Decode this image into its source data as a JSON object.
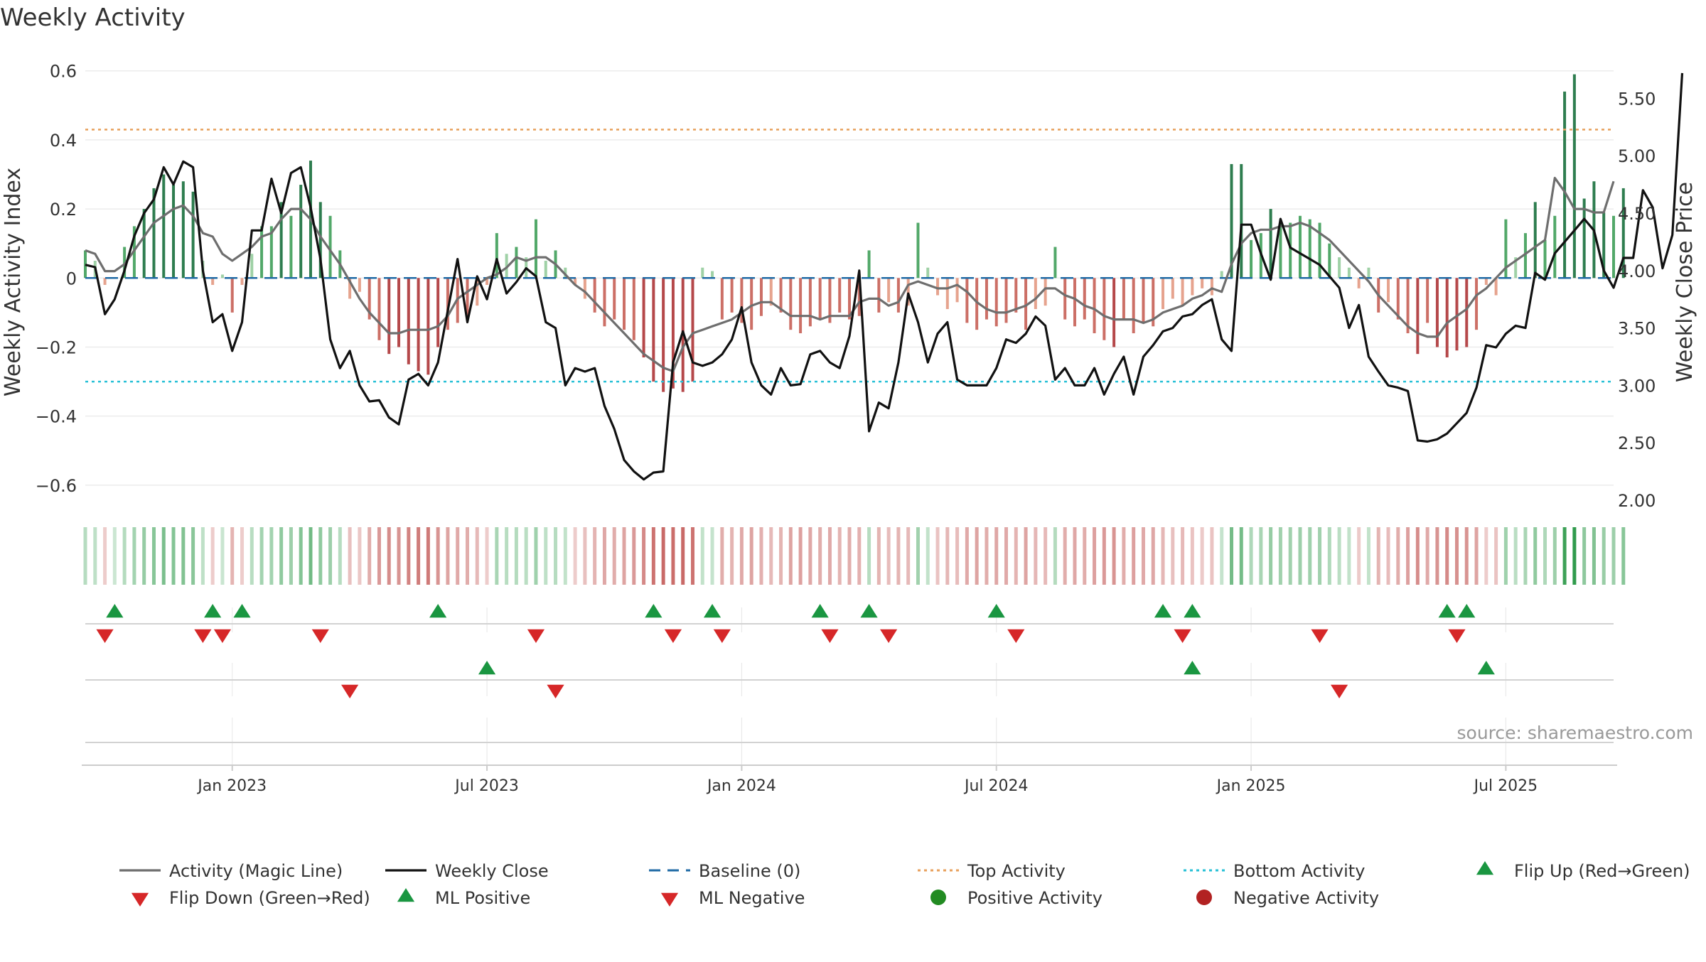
{
  "chart_data": {
    "type": "bar",
    "title": "Weekly Activity",
    "ylabel": "Weekly Activity Index",
    "y2label": "Weekly Close Price",
    "ylim": [
      -0.66,
      0.62
    ],
    "y2lim": [
      1.95,
      5.8
    ],
    "yticks": [
      0.6,
      0.4,
      0.2,
      0,
      -0.2,
      -0.4,
      -0.6
    ],
    "ytick_labels": [
      "0.6",
      "0.4",
      "0.2",
      "0",
      "−0.2",
      "−0.4",
      "−0.6"
    ],
    "y2ticks": [
      5.5,
      5.0,
      4.5,
      4.0,
      3.5,
      3.0,
      2.5,
      2.0
    ],
    "y2tick_labels": [
      "5.50",
      "5.00",
      "4.50",
      "4.00",
      "3.50",
      "3.00",
      "2.50",
      "2.00"
    ],
    "xticks": [
      15,
      41,
      67,
      93,
      119,
      145
    ],
    "xtick_labels": [
      "Jan 2023",
      "Jul 2023",
      "Jan 2024",
      "Jul 2024",
      "Jan 2025",
      "Jul 2025"
    ],
    "week_count": 157,
    "top_activity": 0.43,
    "bottom_activity": -0.3,
    "baseline": 0,
    "activity": [
      0.08,
      0.05,
      -0.02,
      0.0,
      0.09,
      0.15,
      0.2,
      0.26,
      0.3,
      0.27,
      0.28,
      0.25,
      0.05,
      -0.02,
      0.01,
      -0.1,
      -0.02,
      0.07,
      0.15,
      0.15,
      0.22,
      0.18,
      0.27,
      0.34,
      0.22,
      0.18,
      0.08,
      -0.06,
      -0.04,
      -0.12,
      -0.18,
      -0.22,
      -0.2,
      -0.25,
      -0.27,
      -0.28,
      -0.2,
      -0.15,
      -0.13,
      -0.12,
      -0.08,
      -0.02,
      0.13,
      0.07,
      0.09,
      0.06,
      0.17,
      0.05,
      0.08,
      0.03,
      -0.02,
      -0.06,
      -0.1,
      -0.14,
      -0.12,
      -0.15,
      -0.18,
      -0.23,
      -0.3,
      -0.33,
      -0.32,
      -0.33,
      -0.3,
      0.03,
      0.02,
      -0.12,
      -0.1,
      -0.13,
      -0.15,
      -0.11,
      -0.08,
      -0.1,
      -0.15,
      -0.16,
      -0.14,
      -0.12,
      -0.13,
      -0.1,
      -0.12,
      -0.11,
      0.08,
      -0.1,
      -0.07,
      -0.1,
      -0.08,
      0.16,
      0.03,
      -0.05,
      -0.09,
      -0.07,
      -0.13,
      -0.15,
      -0.12,
      -0.14,
      -0.13,
      -0.1,
      -0.15,
      -0.09,
      -0.08,
      0.09,
      -0.12,
      -0.14,
      -0.12,
      -0.16,
      -0.18,
      -0.2,
      -0.12,
      -0.16,
      -0.13,
      -0.14,
      -0.09,
      -0.06,
      -0.08,
      -0.05,
      -0.03,
      -0.05,
      0.02,
      0.33,
      0.33,
      0.11,
      0.13,
      0.2,
      0.16,
      0.16,
      0.18,
      0.17,
      0.16,
      0.1,
      0.06,
      0.03,
      -0.03,
      0.03,
      -0.1,
      -0.07,
      -0.12,
      -0.16,
      -0.22,
      -0.13,
      -0.2,
      -0.23,
      -0.21,
      -0.2,
      -0.15,
      -0.02,
      -0.05,
      0.17,
      0.06,
      0.13,
      0.22,
      0.11,
      0.18,
      0.54,
      0.59,
      0.23,
      0.28,
      0.19,
      0.18,
      0.26
    ],
    "magic_line": [
      0.08,
      0.07,
      0.02,
      0.02,
      0.04,
      0.08,
      0.12,
      0.16,
      0.18,
      0.2,
      0.21,
      0.18,
      0.13,
      0.12,
      0.07,
      0.05,
      0.07,
      0.09,
      0.12,
      0.13,
      0.17,
      0.2,
      0.2,
      0.17,
      0.12,
      0.08,
      0.04,
      -0.01,
      -0.06,
      -0.1,
      -0.13,
      -0.16,
      -0.16,
      -0.15,
      -0.15,
      -0.15,
      -0.14,
      -0.11,
      -0.06,
      -0.04,
      -0.02,
      0.0,
      0.01,
      0.03,
      0.06,
      0.05,
      0.06,
      0.06,
      0.04,
      0.01,
      -0.02,
      -0.04,
      -0.07,
      -0.1,
      -0.13,
      -0.16,
      -0.19,
      -0.22,
      -0.24,
      -0.26,
      -0.27,
      -0.2,
      -0.16,
      -0.15,
      -0.14,
      -0.13,
      -0.12,
      -0.1,
      -0.08,
      -0.07,
      -0.07,
      -0.09,
      -0.11,
      -0.11,
      -0.11,
      -0.12,
      -0.11,
      -0.11,
      -0.11,
      -0.07,
      -0.06,
      -0.06,
      -0.08,
      -0.07,
      -0.02,
      -0.01,
      -0.02,
      -0.03,
      -0.03,
      -0.02,
      -0.04,
      -0.07,
      -0.09,
      -0.1,
      -0.1,
      -0.09,
      -0.08,
      -0.06,
      -0.03,
      -0.03,
      -0.05,
      -0.06,
      -0.08,
      -0.09,
      -0.11,
      -0.12,
      -0.12,
      -0.12,
      -0.13,
      -0.12,
      -0.1,
      -0.09,
      -0.08,
      -0.06,
      -0.05,
      -0.03,
      -0.04,
      0.04,
      0.1,
      0.13,
      0.14,
      0.14,
      0.15,
      0.15,
      0.16,
      0.15,
      0.13,
      0.11,
      0.08,
      0.05,
      0.02,
      -0.01,
      -0.05,
      -0.08,
      -0.11,
      -0.14,
      -0.16,
      -0.17,
      -0.17,
      -0.13,
      -0.11,
      -0.09,
      -0.05,
      -0.03,
      0.0,
      0.03,
      0.05,
      0.07,
      0.09,
      0.11,
      0.29,
      0.25,
      0.2,
      0.2,
      0.19,
      0.19,
      0.28
    ],
    "weekly_close": [
      4.05,
      4.03,
      3.62,
      3.75,
      4.0,
      4.3,
      4.5,
      4.62,
      4.9,
      4.75,
      4.95,
      4.9,
      4.0,
      3.55,
      3.62,
      3.3,
      3.55,
      4.35,
      4.35,
      4.8,
      4.5,
      4.85,
      4.9,
      4.55,
      4.1,
      3.4,
      3.15,
      3.3,
      3.0,
      2.86,
      2.87,
      2.72,
      2.66,
      3.05,
      3.1,
      3.0,
      3.2,
      3.65,
      4.1,
      3.55,
      3.95,
      3.75,
      4.1,
      3.8,
      3.9,
      4.02,
      3.95,
      3.55,
      3.5,
      3.0,
      3.15,
      3.12,
      3.15,
      2.82,
      2.62,
      2.35,
      2.25,
      2.18,
      2.24,
      2.25,
      3.2,
      3.47,
      3.2,
      3.17,
      3.2,
      3.27,
      3.4,
      3.68,
      3.2,
      3.0,
      2.92,
      3.15,
      3.0,
      3.01,
      3.27,
      3.3,
      3.2,
      3.15,
      3.43,
      4.0,
      2.6,
      2.85,
      2.8,
      3.2,
      3.8,
      3.55,
      3.2,
      3.45,
      3.55,
      3.05,
      3.0,
      3.0,
      3.0,
      3.15,
      3.4,
      3.37,
      3.45,
      3.6,
      3.52,
      3.05,
      3.15,
      3.0,
      3.0,
      3.15,
      2.92,
      3.1,
      3.25,
      2.92,
      3.25,
      3.35,
      3.47,
      3.5,
      3.6,
      3.62,
      3.7,
      3.75,
      3.4,
      3.3,
      4.4,
      4.4,
      4.15,
      3.92,
      4.45,
      4.2,
      4.15,
      4.1,
      4.05,
      3.95,
      3.85,
      3.5,
      3.7,
      3.25,
      3.12,
      3.0,
      2.98,
      2.95,
      2.52,
      2.51,
      2.53,
      2.58,
      2.67,
      2.76,
      2.98,
      3.35,
      3.33,
      3.45,
      3.52,
      3.5,
      3.98,
      3.92,
      4.15,
      4.25,
      4.35,
      4.45,
      4.35,
      4.0,
      3.85,
      4.11,
      4.11,
      4.7,
      4.55,
      4.02,
      4.31,
      5.72
    ],
    "flip_up_weeks": [
      3,
      13,
      16,
      36,
      58,
      64,
      75,
      80,
      93,
      110,
      113,
      139,
      141
    ],
    "flip_down_weeks": [
      2,
      12,
      14,
      24,
      46,
      60,
      65,
      76,
      82,
      95,
      112,
      126,
      140
    ],
    "ml_positive_weeks": [
      41,
      113,
      143
    ],
    "ml_negative_weeks": [
      27,
      48,
      128
    ],
    "legend": [
      {
        "label": "Activity (Magic Line)",
        "kind": "line",
        "color": "#6e6e6e"
      },
      {
        "label": "Weekly Close",
        "kind": "line",
        "color": "#111111"
      },
      {
        "label": "Baseline (0)",
        "kind": "dashed",
        "color": "#1f6aa5"
      },
      {
        "label": "Top Activity",
        "kind": "dotted",
        "color": "#e8a05c"
      },
      {
        "label": "Bottom Activity",
        "kind": "dotted",
        "color": "#27c0d6"
      },
      {
        "label": "Flip Up (Red→Green)",
        "kind": "triangle-up",
        "color": "#1a9641"
      },
      {
        "label": "Flip Down (Green→Red)",
        "kind": "triangle-down",
        "color": "#d62728"
      },
      {
        "label": "ML Positive",
        "kind": "triangle-up",
        "color": "#1a9641"
      },
      {
        "label": "ML Negative",
        "kind": "triangle-down",
        "color": "#d62728"
      },
      {
        "label": "Positive Activity",
        "kind": "circle",
        "color": "#228b22"
      },
      {
        "label": "Negative Activity",
        "kind": "circle",
        "color": "#b22222"
      }
    ],
    "source_note": "source: sharemaestro.com"
  }
}
